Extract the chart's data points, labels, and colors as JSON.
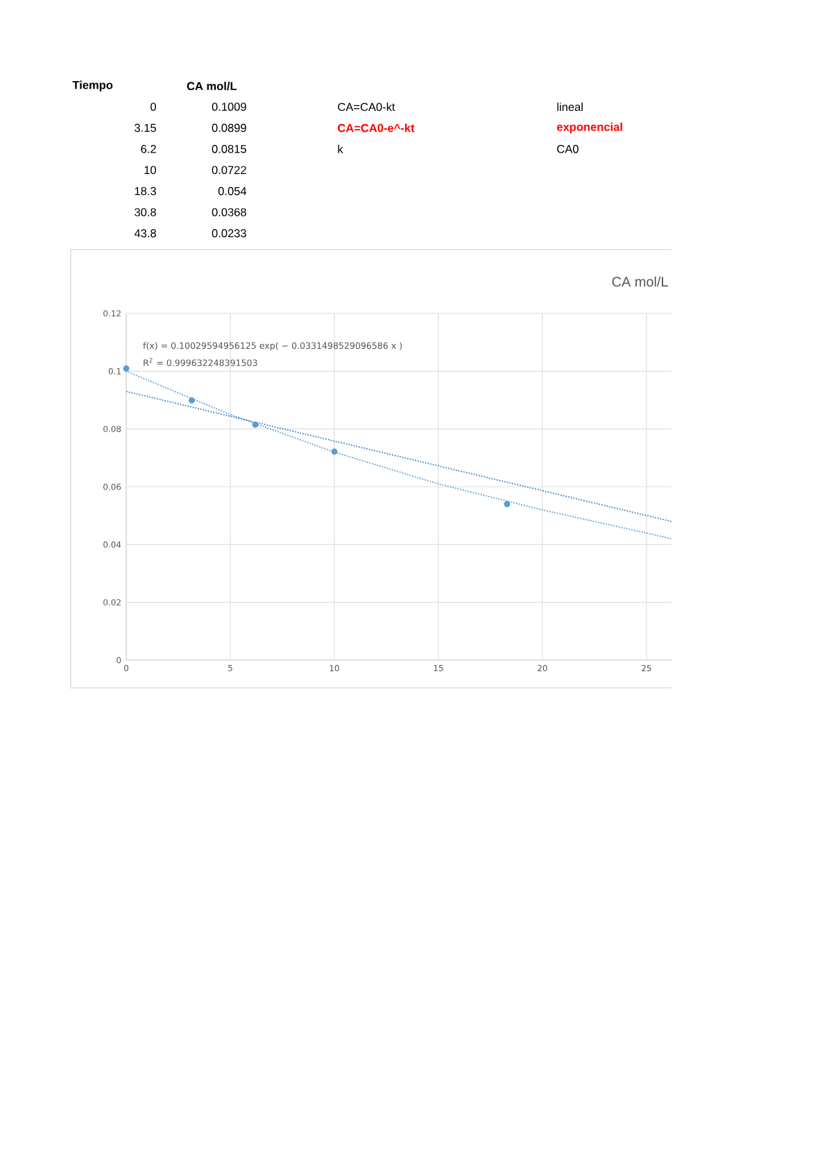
{
  "chart_data": [
    {
      "type": "other",
      "annotations": [
        "Tiempo",
        "CA mol/L",
        "0",
        "3.15",
        "6.2",
        "10",
        "18.3",
        "30.8",
        "43.8",
        "0.1009",
        "0.0899",
        "0.0815",
        "0.0722",
        "0.054",
        "0.0368",
        "0.0233",
        "CA=CA0-kt",
        "lineal",
        "CA=CA0-e^-kt",
        "exponencial",
        "k",
        "CA0"
      ]
    },
    {
      "type": "scatter",
      "title": "CA mol/L",
      "grid": true,
      "xlim": [
        0,
        26.2
      ],
      "ylim": [
        0,
        0.12
      ],
      "xticks": [
        0,
        5,
        10,
        15,
        20,
        25
      ],
      "yticks": [
        0,
        0.02,
        0.04,
        0.06,
        0.08,
        0.1,
        0.12
      ],
      "annotations": [
        "f(x) = 0.10029594956125 exp( − 0.0331498529096586 x )",
        "R$^{2}$ = 0.999632248391503"
      ],
      "series": [
        {
          "type": "scatter",
          "marker": "circle",
          "color": "#5b9bd5",
          "x": [
            0,
            3.15,
            6.2,
            10,
            18.3
          ],
          "values": [
            0.1009,
            0.0899,
            0.0815,
            0.0722,
            0.054
          ]
        },
        {
          "type": "line",
          "marker": "none",
          "line_style": "dotted",
          "color": "#5b9bd5",
          "x": [
            0,
            5,
            10,
            15,
            20,
            25,
            26.2
          ],
          "values": [
            0.1,
            0.085,
            0.072,
            0.061,
            0.052,
            0.044,
            0.042
          ]
        },
        {
          "type": "line",
          "marker": "none",
          "line_style": "dotted",
          "color": "#3f7fc4",
          "x": [
            0,
            26.2
          ],
          "values": [
            0.093,
            0.048
          ]
        }
      ]
    }
  ]
}
